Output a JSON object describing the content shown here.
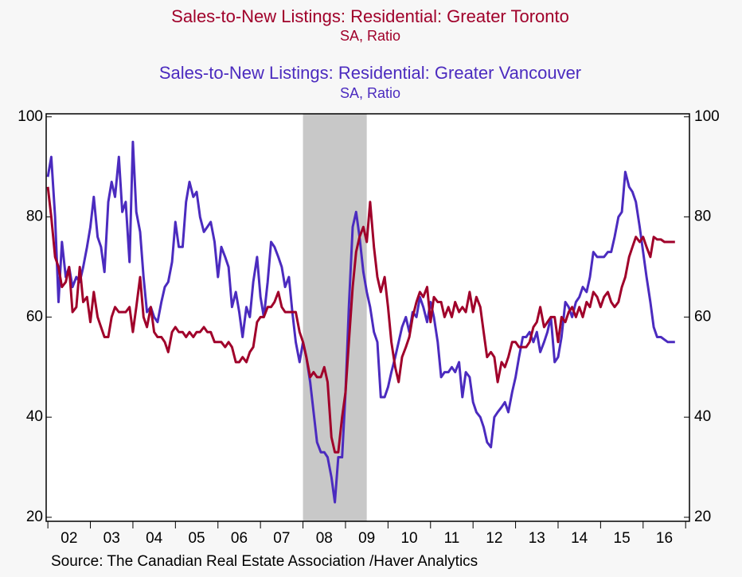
{
  "chart_data": {
    "type": "line",
    "titles": [
      {
        "text": "Sales-to-New Listings: Residential: Greater Toronto",
        "color": "#a0002a"
      },
      {
        "text": "SA, Ratio",
        "color": "#a0002a"
      },
      {
        "text": "Sales-to-New Listings: Residential: Greater Vancouver",
        "color": "#4b2bbf"
      },
      {
        "text": "SA, Ratio",
        "color": "#4b2bbf"
      }
    ],
    "source": "Source:  The Canadian Real Estate Association /Haver Analytics",
    "xlim": [
      2001.96,
      2017.09
    ],
    "xticks": [
      {
        "value": 2002.5,
        "label": "02"
      },
      {
        "value": 2003.5,
        "label": "03"
      },
      {
        "value": 2004.5,
        "label": "04"
      },
      {
        "value": 2005.5,
        "label": "05"
      },
      {
        "value": 2006.5,
        "label": "06"
      },
      {
        "value": 2007.5,
        "label": "07"
      },
      {
        "value": 2008.5,
        "label": "08"
      },
      {
        "value": 2009.5,
        "label": "09"
      },
      {
        "value": 2010.5,
        "label": "10"
      },
      {
        "value": 2011.5,
        "label": "11"
      },
      {
        "value": 2012.5,
        "label": "12"
      },
      {
        "value": 2013.5,
        "label": "13"
      },
      {
        "value": 2014.5,
        "label": "14"
      },
      {
        "value": 2015.5,
        "label": "15"
      },
      {
        "value": 2016.5,
        "label": "16"
      }
    ],
    "ylim": [
      19.2,
      100.6
    ],
    "yticks": [
      20,
      40,
      60,
      80,
      100
    ],
    "y2lim": [
      19.2,
      100.6
    ],
    "y2ticks": [
      20,
      40,
      60,
      80,
      100
    ],
    "shade": [
      2008.0,
      2009.5
    ],
    "shade_color": "#c8c8c8",
    "x": [
      2002,
      2002.08,
      2002.17,
      2002.25,
      2002.33,
      2002.42,
      2002.5,
      2002.58,
      2002.67,
      2002.75,
      2002.83,
      2002.92,
      2003,
      2003.08,
      2003.17,
      2003.25,
      2003.33,
      2003.42,
      2003.5,
      2003.58,
      2003.67,
      2003.75,
      2003.83,
      2003.92,
      2004,
      2004.08,
      2004.17,
      2004.25,
      2004.33,
      2004.42,
      2004.5,
      2004.58,
      2004.67,
      2004.75,
      2004.83,
      2004.92,
      2005,
      2005.08,
      2005.17,
      2005.25,
      2005.33,
      2005.42,
      2005.5,
      2005.58,
      2005.67,
      2005.75,
      2005.83,
      2005.92,
      2006,
      2006.08,
      2006.17,
      2006.25,
      2006.33,
      2006.42,
      2006.5,
      2006.58,
      2006.67,
      2006.75,
      2006.83,
      2006.92,
      2007,
      2007.08,
      2007.17,
      2007.25,
      2007.33,
      2007.42,
      2007.5,
      2007.58,
      2007.67,
      2007.75,
      2007.83,
      2007.92,
      2008,
      2008.08,
      2008.17,
      2008.25,
      2008.33,
      2008.42,
      2008.5,
      2008.58,
      2008.67,
      2008.75,
      2008.83,
      2008.92,
      2009,
      2009.08,
      2009.17,
      2009.25,
      2009.33,
      2009.42,
      2009.5,
      2009.58,
      2009.67,
      2009.75,
      2009.83,
      2009.92,
      2010,
      2010.08,
      2010.17,
      2010.25,
      2010.33,
      2010.42,
      2010.5,
      2010.58,
      2010.67,
      2010.75,
      2010.83,
      2010.92,
      2011,
      2011.08,
      2011.17,
      2011.25,
      2011.33,
      2011.42,
      2011.5,
      2011.58,
      2011.67,
      2011.75,
      2011.83,
      2011.92,
      2012,
      2012.08,
      2012.17,
      2012.25,
      2012.33,
      2012.42,
      2012.5,
      2012.58,
      2012.67,
      2012.75,
      2012.83,
      2012.92,
      2013,
      2013.08,
      2013.17,
      2013.25,
      2013.33,
      2013.42,
      2013.5,
      2013.58,
      2013.67,
      2013.75,
      2013.83,
      2013.92,
      2014,
      2014.08,
      2014.17,
      2014.25,
      2014.33,
      2014.42,
      2014.5,
      2014.58,
      2014.67,
      2014.75,
      2014.83,
      2014.92,
      2015,
      2015.08,
      2015.17,
      2015.25,
      2015.33,
      2015.42,
      2015.5,
      2015.58,
      2015.67,
      2015.75,
      2015.83,
      2015.92,
      2016,
      2016.08,
      2016.17,
      2016.25,
      2016.33,
      2016.42,
      2016.5,
      2016.58,
      2016.67,
      2016.75
    ],
    "series": [
      {
        "color": "#4b2bbf",
        "values": [
          88,
          92,
          80,
          63,
          75,
          68,
          70,
          66,
          68,
          67,
          70,
          74,
          78,
          84,
          76,
          74,
          69,
          83,
          87,
          84,
          92,
          81,
          83,
          71,
          95,
          81,
          77,
          68,
          61,
          62,
          60,
          59,
          63,
          66,
          67,
          71,
          79,
          74,
          74,
          83,
          87,
          84,
          85,
          80,
          77,
          78,
          79,
          75,
          68,
          74,
          72,
          70,
          62,
          65,
          61,
          56,
          62,
          60,
          67,
          72,
          64,
          60,
          67,
          75,
          74,
          72,
          70,
          66,
          68,
          61,
          55,
          51,
          55,
          52,
          47,
          41,
          35,
          33,
          33,
          32,
          28,
          23,
          32,
          32,
          45,
          62,
          78,
          81,
          76,
          69,
          65,
          62,
          57,
          55,
          44,
          44,
          46,
          49,
          52,
          55,
          58,
          60,
          57,
          61,
          60,
          64,
          62,
          59,
          63,
          60,
          55,
          48,
          49,
          49,
          50,
          49,
          51,
          44,
          49,
          48,
          43,
          41,
          40,
          38,
          35,
          34,
          40,
          41,
          42,
          43,
          41,
          45,
          48,
          52,
          56,
          56,
          57,
          55,
          57,
          53,
          55,
          57,
          60,
          51,
          52,
          56,
          63,
          62,
          60,
          63,
          64,
          66,
          65,
          68,
          73,
          72,
          72,
          72,
          73,
          73,
          76,
          80,
          81,
          89,
          86,
          85,
          83,
          78,
          73,
          68,
          63,
          58,
          56,
          56,
          55.5,
          55,
          55,
          55
        ]
      },
      {
        "color": "#a0002a",
        "values": [
          86,
          80,
          72,
          70,
          66,
          67,
          70,
          61,
          62,
          70,
          63,
          64,
          59,
          65,
          60,
          58,
          56,
          56,
          60,
          62,
          61,
          61,
          61,
          62,
          57,
          62,
          68,
          60,
          58,
          62,
          57,
          56,
          56,
          55,
          53,
          57,
          58,
          57,
          57,
          56,
          57,
          56,
          57,
          57,
          58,
          57,
          57,
          55,
          55,
          55,
          54,
          55,
          54,
          51,
          51,
          52,
          51,
          53,
          54,
          59,
          60,
          60,
          62,
          62,
          63,
          65,
          62,
          61,
          61,
          61,
          61,
          57,
          55,
          52,
          48,
          49,
          48,
          48,
          50,
          47,
          36,
          33,
          33,
          40,
          45,
          55,
          66,
          73,
          76,
          78,
          75,
          83,
          74,
          68,
          65,
          68,
          62,
          55,
          50,
          47,
          52,
          54,
          56,
          60,
          63,
          65,
          64,
          66,
          59,
          64,
          63,
          63,
          60,
          62,
          60,
          63,
          61,
          62,
          61,
          65,
          61,
          64,
          62,
          57,
          52,
          53,
          52,
          47,
          51,
          50,
          52,
          55,
          55,
          54,
          54,
          54,
          55,
          58,
          59,
          62,
          58,
          59,
          60,
          60,
          55,
          60,
          59,
          61,
          62,
          60,
          62,
          60,
          63,
          62,
          65,
          64,
          62,
          64,
          65,
          63,
          62,
          63,
          66,
          68,
          72,
          74,
          76,
          75,
          76,
          74,
          72,
          76,
          75.5,
          75.5,
          75,
          75,
          75,
          75
        ]
      }
    ]
  }
}
